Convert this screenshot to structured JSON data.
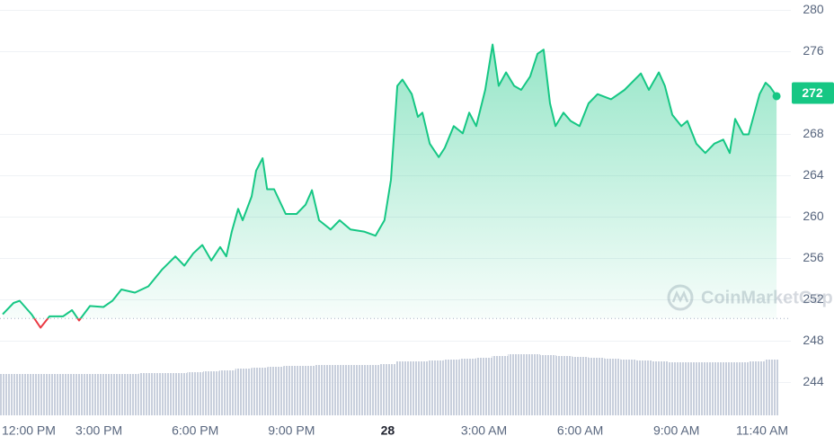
{
  "chart_data": {
    "type": "area",
    "x": [
      0,
      0.34,
      0.53,
      0.9,
      1.18,
      1.46,
      1.88,
      2.16,
      2.38,
      2.72,
      3.14,
      3.42,
      3.7,
      4.12,
      4.54,
      4.96,
      5.38,
      5.66,
      5.94,
      6.22,
      6.5,
      6.78,
      6.97,
      7.14,
      7.34,
      7.48,
      7.76,
      7.9,
      8.1,
      8.24,
      8.46,
      8.82,
      9.16,
      9.44,
      9.64,
      9.86,
      10.22,
      10.5,
      10.84,
      11.26,
      11.62,
      11.9,
      12.1,
      12.3,
      12.46,
      12.75,
      12.94,
      13.08,
      13.31,
      13.59,
      13.78,
      14.06,
      14.34,
      14.54,
      14.76,
      15.04,
      15.27,
      15.46,
      15.69,
      15.94,
      16.16,
      16.44,
      16.67,
      16.86,
      17.06,
      17.23,
      17.48,
      17.7,
      17.98,
      18.26,
      18.54,
      18.96,
      19.38,
      19.89,
      20.14,
      20.45,
      20.64,
      20.87,
      21.15,
      21.34,
      21.62,
      21.9,
      22.18,
      22.46,
      22.66,
      22.83,
      23.08,
      23.25,
      23.59,
      23.78,
      23.92,
      24.12
    ],
    "values": [
      250.6,
      251.7,
      251.9,
      250.6,
      249.3,
      250.4,
      250.4,
      251.0,
      250.0,
      251.4,
      251.3,
      251.9,
      253.0,
      252.7,
      253.3,
      254.9,
      256.2,
      255.3,
      256.5,
      257.3,
      255.8,
      257.1,
      256.2,
      258.6,
      260.8,
      259.7,
      262.0,
      264.5,
      265.7,
      262.7,
      262.7,
      260.3,
      260.3,
      261.2,
      262.6,
      259.7,
      258.8,
      259.7,
      258.8,
      258.6,
      258.2,
      259.7,
      263.6,
      272.7,
      273.3,
      271.9,
      269.7,
      270.1,
      267.1,
      265.8,
      266.7,
      268.8,
      268.1,
      270.1,
      268.8,
      272.3,
      276.7,
      272.7,
      274.0,
      272.7,
      272.3,
      273.6,
      275.8,
      276.2,
      271.0,
      268.8,
      270.1,
      269.3,
      268.8,
      271.0,
      271.9,
      271.4,
      272.3,
      273.9,
      272.3,
      274.0,
      272.7,
      269.9,
      268.8,
      269.3,
      267.1,
      266.2,
      267.1,
      267.5,
      266.2,
      269.5,
      268.0,
      268.0,
      271.9,
      273.0,
      272.6,
      271.7
    ],
    "color": "#16c784",
    "down_color": "#ea3943",
    "baseline": 250.2,
    "current_price": 272,
    "volume": {
      "x": [
        0,
        0.5,
        1,
        1.5,
        2,
        2.5,
        3,
        3.5,
        4,
        4.5,
        5,
        5.5,
        6,
        6.5,
        7,
        7.5,
        8,
        8.5,
        9,
        9.5,
        10,
        10.5,
        11,
        11.5,
        12,
        12.5,
        13,
        13.5,
        14,
        14.5,
        15,
        15.5,
        16,
        16.5,
        17,
        17.5,
        18,
        18.5,
        19,
        19.5,
        20,
        20.5,
        21,
        21.5,
        22,
        22.5,
        23,
        23.5,
        24
      ],
      "values": [
        46,
        46,
        46,
        46,
        46,
        46,
        46,
        46,
        46,
        47,
        47,
        47,
        48,
        49,
        50,
        52,
        53,
        54,
        55,
        55,
        56,
        56,
        56,
        56,
        57,
        60,
        60,
        61,
        62,
        63,
        64,
        66,
        68,
        68,
        67,
        66,
        65,
        64,
        63,
        62,
        61,
        60,
        59,
        59,
        59,
        59,
        59,
        60,
        62
      ],
      "color": "#c8cfdc",
      "ylim": [
        0,
        100
      ]
    },
    "xlim": [
      0,
      24.2
    ],
    "ylim": [
      241,
      281
    ],
    "yticks": [
      244,
      248,
      252,
      256,
      260,
      264,
      268,
      276,
      280
    ],
    "xticks": [
      {
        "value": 0,
        "label": "12:00 PM"
      },
      {
        "value": 3,
        "label": "3:00 PM"
      },
      {
        "value": 6,
        "label": "6:00 PM"
      },
      {
        "value": 9,
        "label": "9:00 PM"
      },
      {
        "value": 12,
        "label": "28"
      },
      {
        "value": 15,
        "label": "3:00 AM"
      },
      {
        "value": 18,
        "label": "6:00 AM"
      },
      {
        "value": 21,
        "label": "9:00 AM"
      },
      {
        "value": 23.67,
        "label": "11:40 AM"
      }
    ],
    "watermark": "CoinMarketCap",
    "grid": true
  }
}
